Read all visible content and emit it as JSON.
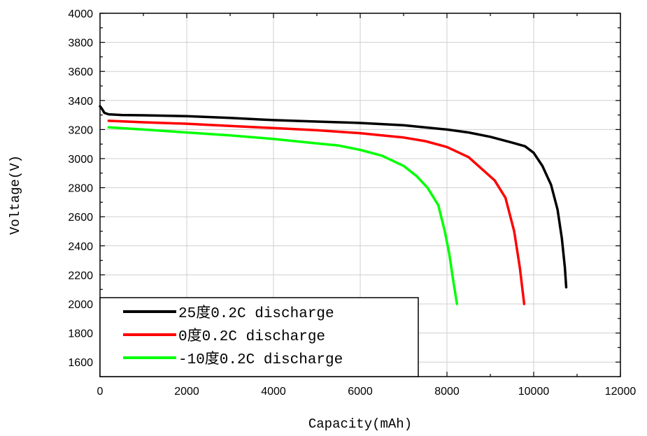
{
  "chart_data": {
    "type": "line",
    "xlabel": "Capacity(mAh)",
    "ylabel": "Voltage(V)",
    "xlim": [
      0,
      12000
    ],
    "ylim": [
      1500,
      4000
    ],
    "xticks": [
      0,
      2000,
      4000,
      6000,
      8000,
      10000,
      12000
    ],
    "yticks": [
      1600,
      1800,
      2000,
      2200,
      2400,
      2600,
      2800,
      3000,
      3200,
      3400,
      3600,
      3800,
      4000
    ],
    "grid": true,
    "legend_position": "bottom-left",
    "series": [
      {
        "name": "25度0.2C discharge",
        "color": "#000000",
        "points": [
          [
            0,
            3360
          ],
          [
            50,
            3340
          ],
          [
            100,
            3315
          ],
          [
            200,
            3305
          ],
          [
            500,
            3300
          ],
          [
            1000,
            3298
          ],
          [
            2000,
            3292
          ],
          [
            3000,
            3280
          ],
          [
            4000,
            3265
          ],
          [
            5000,
            3255
          ],
          [
            6000,
            3245
          ],
          [
            7000,
            3230
          ],
          [
            8000,
            3200
          ],
          [
            8500,
            3180
          ],
          [
            9000,
            3150
          ],
          [
            9500,
            3110
          ],
          [
            9800,
            3085
          ],
          [
            10000,
            3040
          ],
          [
            10200,
            2950
          ],
          [
            10400,
            2820
          ],
          [
            10550,
            2650
          ],
          [
            10650,
            2450
          ],
          [
            10720,
            2250
          ],
          [
            10750,
            2115
          ]
        ]
      },
      {
        "name": "0度0.2C discharge",
        "color": "#ff0000",
        "points": [
          [
            200,
            3260
          ],
          [
            1000,
            3250
          ],
          [
            2000,
            3240
          ],
          [
            3000,
            3225
          ],
          [
            4000,
            3210
          ],
          [
            5000,
            3195
          ],
          [
            6000,
            3175
          ],
          [
            6500,
            3160
          ],
          [
            7000,
            3145
          ],
          [
            7500,
            3120
          ],
          [
            8000,
            3080
          ],
          [
            8500,
            3010
          ],
          [
            8800,
            2930
          ],
          [
            9100,
            2850
          ],
          [
            9350,
            2730
          ],
          [
            9550,
            2500
          ],
          [
            9680,
            2250
          ],
          [
            9780,
            2000
          ]
        ]
      },
      {
        "name": "-10度0.2C discharge",
        "color": "#00ff00",
        "points": [
          [
            200,
            3215
          ],
          [
            1000,
            3200
          ],
          [
            2000,
            3180
          ],
          [
            3000,
            3160
          ],
          [
            4000,
            3135
          ],
          [
            5000,
            3105
          ],
          [
            5500,
            3090
          ],
          [
            6000,
            3060
          ],
          [
            6500,
            3020
          ],
          [
            7000,
            2950
          ],
          [
            7300,
            2880
          ],
          [
            7550,
            2800
          ],
          [
            7800,
            2680
          ],
          [
            7950,
            2500
          ],
          [
            8050,
            2350
          ],
          [
            8150,
            2150
          ],
          [
            8230,
            2000
          ]
        ]
      }
    ]
  }
}
